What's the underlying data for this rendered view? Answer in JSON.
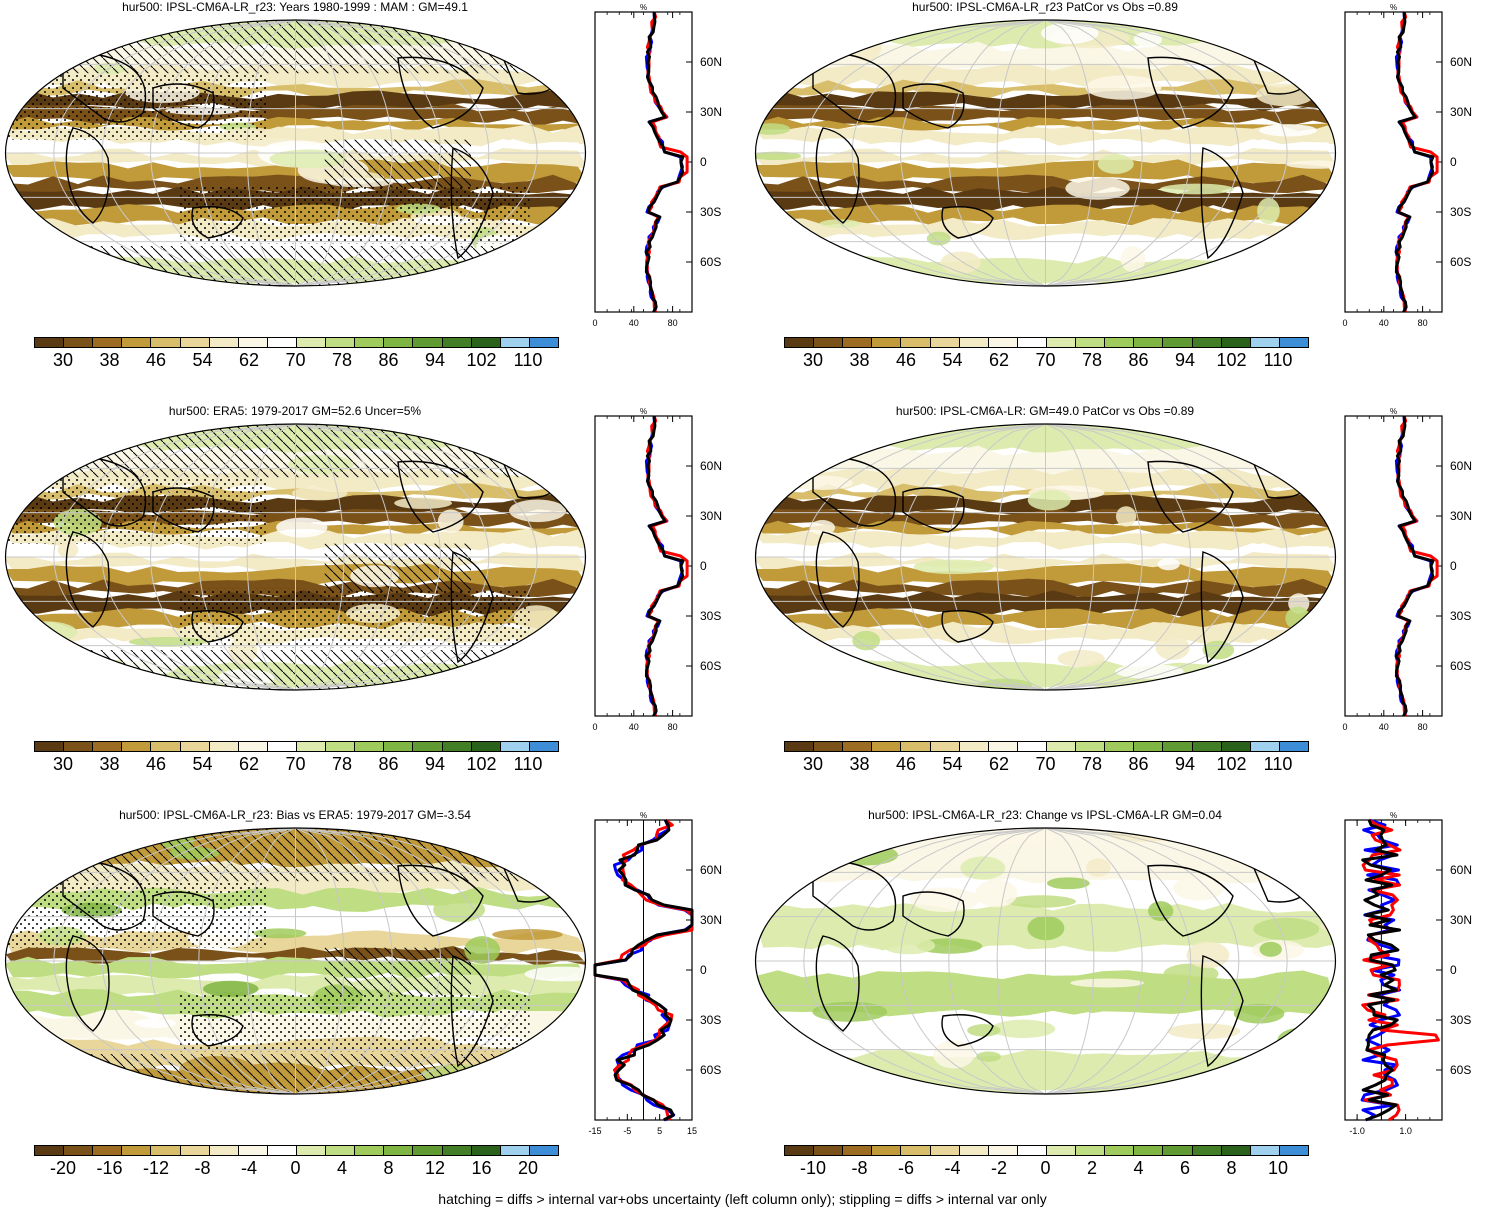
{
  "panels": [
    {
      "id": "p1",
      "title": "hur500: IPSL-CM6A-LR_r23: Years 1980-1999 : MAM : GM=49.1",
      "hatching": true,
      "stippling": true,
      "colorbar_ticks": [
        "30",
        "38",
        "46",
        "54",
        "62",
        "70",
        "78",
        "86",
        "94",
        "102",
        "110"
      ],
      "zonal_x_ticks": [
        "0",
        "40",
        "80"
      ],
      "zonal_y_ticks": [
        "60N",
        "30N",
        "0",
        "30S",
        "60S"
      ],
      "zonal_unit": "%",
      "zonal_mode": "abs"
    },
    {
      "id": "p2",
      "title": "hur500: IPSL-CM6A-LR_r23 PatCor vs Obs =0.89",
      "hatching": false,
      "stippling": false,
      "colorbar_ticks": [
        "30",
        "38",
        "46",
        "54",
        "62",
        "70",
        "78",
        "86",
        "94",
        "102",
        "110"
      ],
      "zonal_x_ticks": [
        "0",
        "40",
        "80"
      ],
      "zonal_y_ticks": [
        "60N",
        "30N",
        "0",
        "30S",
        "60S"
      ],
      "zonal_unit": "%",
      "zonal_mode": "abs"
    },
    {
      "id": "p3",
      "title": "hur500: ERA5: 1979-2017 GM=52.6 Uncer=5%",
      "hatching": true,
      "stippling": true,
      "colorbar_ticks": [
        "30",
        "38",
        "46",
        "54",
        "62",
        "70",
        "78",
        "86",
        "94",
        "102",
        "110"
      ],
      "zonal_x_ticks": [
        "0",
        "40",
        "80"
      ],
      "zonal_y_ticks": [
        "60N",
        "30N",
        "0",
        "30S",
        "60S"
      ],
      "zonal_unit": "%",
      "zonal_mode": "abs"
    },
    {
      "id": "p4",
      "title": "hur500: IPSL-CM6A-LR: GM=49.0 PatCor vs Obs =0.89",
      "hatching": false,
      "stippling": false,
      "colorbar_ticks": [
        "30",
        "38",
        "46",
        "54",
        "62",
        "70",
        "78",
        "86",
        "94",
        "102",
        "110"
      ],
      "zonal_x_ticks": [
        "0",
        "40",
        "80"
      ],
      "zonal_y_ticks": [
        "60N",
        "30N",
        "0",
        "30S",
        "60S"
      ],
      "zonal_unit": "%",
      "zonal_mode": "abs"
    },
    {
      "id": "p5",
      "title": "hur500: IPSL-CM6A-LR_r23: Bias vs ERA5: 1979-2017 GM=-3.54",
      "hatching": true,
      "stippling": true,
      "colorbar_ticks": [
        "-20",
        "-16",
        "-12",
        "-8",
        "-4",
        "0",
        "4",
        "8",
        "12",
        "16",
        "20"
      ],
      "zonal_x_ticks": [
        "-15",
        "-5",
        "5",
        "15"
      ],
      "zonal_y_ticks": [
        "60N",
        "30N",
        "0",
        "30S",
        "60S"
      ],
      "zonal_unit": "%",
      "zonal_mode": "bias"
    },
    {
      "id": "p6",
      "title": "hur500: IPSL-CM6A-LR_r23: Change vs IPSL-CM6A-LR GM=0.04",
      "hatching": false,
      "stippling": false,
      "colorbar_ticks": [
        "-10",
        "-8",
        "-6",
        "-4",
        "-2",
        "0",
        "2",
        "4",
        "6",
        "8",
        "10"
      ],
      "zonal_x_ticks": [
        "-1.0",
        "1.0"
      ],
      "zonal_y_ticks": [
        "60N",
        "30N",
        "0",
        "30S",
        "60S"
      ],
      "zonal_unit": "%",
      "zonal_mode": "change"
    }
  ],
  "colors": {
    "palette": [
      "#5a3a12",
      "#7a5219",
      "#9b6c22",
      "#c19a3a",
      "#d8bd6a",
      "#e8d69a",
      "#f3ebc6",
      "#fbf7e6",
      "#ffffff",
      "#ddecae",
      "#bfdd82",
      "#9fcb5c",
      "#7fb543",
      "#5f9a32",
      "#427e26",
      "#2a621c",
      "#9fd0ee",
      "#3d8ed6"
    ],
    "zonal_lines": {
      "model": "#ff0000",
      "obs": "#0000ff",
      "ensemble": "#000000"
    }
  },
  "footer": "hatching = diffs > internal var+obs uncertainty (left column only); stippling = diffs > internal var only"
}
